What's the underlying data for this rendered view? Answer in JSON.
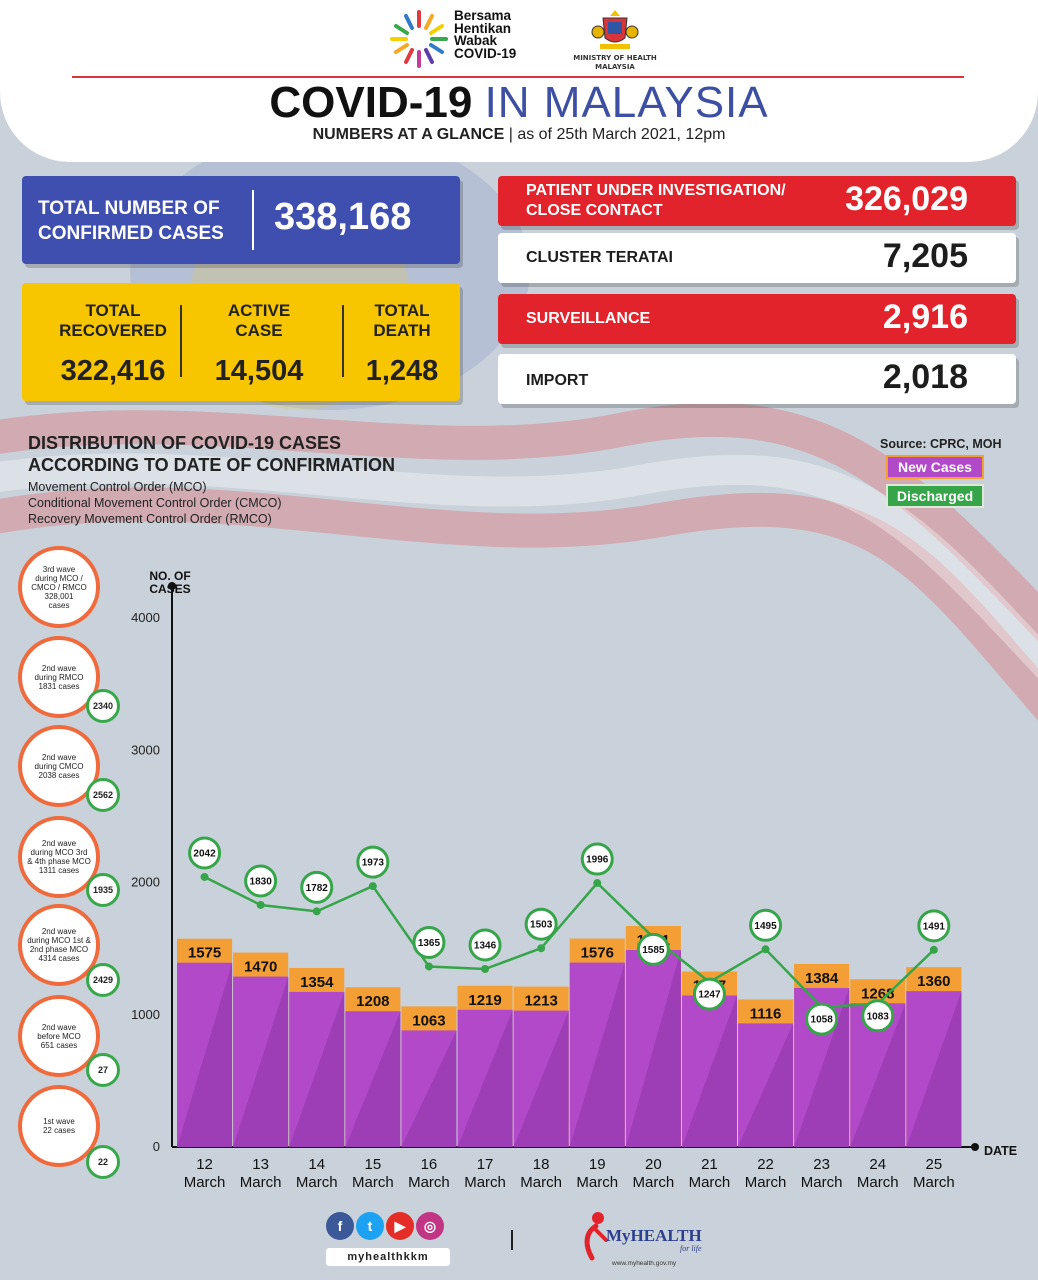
{
  "header": {
    "campaign_logo_text": "Bersama\nHentikan\nWabak\nCOVID-19",
    "ministry_text": "MINISTRY OF HEALTH\nMALAYSIA",
    "title_bold": "COVID-19",
    "title_light": "IN MALAYSIA",
    "subtitle_bold": "NUMBERS AT A GLANCE",
    "subtitle_rest": " | as of 25th March 2021, 12pm"
  },
  "totals": {
    "confirmed_label": "TOTAL NUMBER OF\nCONFIRMED CASES",
    "confirmed_value": "338,168",
    "recovered_label": "TOTAL\nRECOVERED",
    "recovered_value": "322,416",
    "active_label": "ACTIVE\nCASE",
    "active_value": "14,504",
    "death_label": "TOTAL\nDEATH",
    "death_value": "1,248"
  },
  "right_stats": [
    {
      "label": "PATIENT UNDER INVESTIGATION/\nCLOSE CONTACT",
      "value": "326,029",
      "style": "red"
    },
    {
      "label": "CLUSTER TERATAI",
      "value": "7,205",
      "style": "white"
    },
    {
      "label": "SURVEILLANCE",
      "value": "2,916",
      "style": "red"
    },
    {
      "label": "IMPORT",
      "value": "2,018",
      "style": "white"
    }
  ],
  "distribution": {
    "title": "DISTRIBUTION OF COVID-19 CASES\nACCORDING TO DATE OF CONFIRMATION",
    "mco": "Movement Control Order (MCO)",
    "cmco": "Conditional Movement Control Order (CMCO)",
    "rmco": "Recovery Movement Control Order (RMCO)",
    "source": "Source: CPRC, MOH",
    "legend_new": "New Cases",
    "legend_discharged": "Discharged",
    "yaxis_title": "NO. OF\nCASES",
    "xaxis_title": "DATE"
  },
  "waves": [
    {
      "text": "3rd wave\nduring MCO /\nCMCO / RMCO\n328,001\ncases",
      "discharged": ""
    },
    {
      "text": "2nd wave\nduring RMCO\n1831 cases",
      "discharged": "2340"
    },
    {
      "text": "2nd wave\nduring CMCO\n2038 cases",
      "discharged": "2562"
    },
    {
      "text": "2nd wave\nduring MCO 3rd\n& 4th phase MCO\n1311 cases",
      "discharged": "1935"
    },
    {
      "text": "2nd wave\nduring MCO 1st &\n2nd phase MCO\n4314 cases",
      "discharged": "2429"
    },
    {
      "text": "2nd wave\nbefore MCO\n651 cases",
      "discharged": "27"
    },
    {
      "text": "1st wave\n22 cases",
      "discharged": "22"
    }
  ],
  "chart_data": {
    "type": "bar",
    "categories": [
      "12\nMarch",
      "13\nMarch",
      "14\nMarch",
      "15\nMarch",
      "16\nMarch",
      "17\nMarch",
      "18\nMarch",
      "19\nMarch",
      "20\nMarch",
      "21\nMarch",
      "22\nMarch",
      "23\nMarch",
      "24\nMarch",
      "25\nMarch"
    ],
    "series": [
      {
        "name": "New Cases",
        "type": "bar",
        "values": [
          1575,
          1470,
          1354,
          1208,
          1063,
          1219,
          1213,
          1576,
          1671,
          1327,
          1116,
          1384,
          1268,
          1360
        ]
      },
      {
        "name": "Discharged",
        "type": "line",
        "values": [
          2042,
          1830,
          1782,
          1973,
          1365,
          1346,
          1503,
          1996,
          1585,
          1247,
          1495,
          1058,
          1083,
          1491
        ]
      }
    ],
    "xlabel": "DATE",
    "ylabel": "NO. OF CASES",
    "ylim": [
      0,
      4000
    ],
    "yticks": [
      0,
      1000,
      2000,
      3000,
      4000
    ],
    "grid": false,
    "legend": "top-right",
    "colors": {
      "bar_top": "#f39f35",
      "bar_body": "#b249c9",
      "bar_body_dark": "#8e35a8",
      "line": "#36a54a"
    }
  },
  "footer": {
    "social_handle": "myhealthkkm",
    "myhealth_brand": "MyHEALTH",
    "myhealth_tag": "for life",
    "myhealth_url": "www.myhealth.gov.my",
    "social_icons": [
      "facebook-icon",
      "twitter-icon",
      "youtube-icon",
      "instagram-icon"
    ]
  }
}
